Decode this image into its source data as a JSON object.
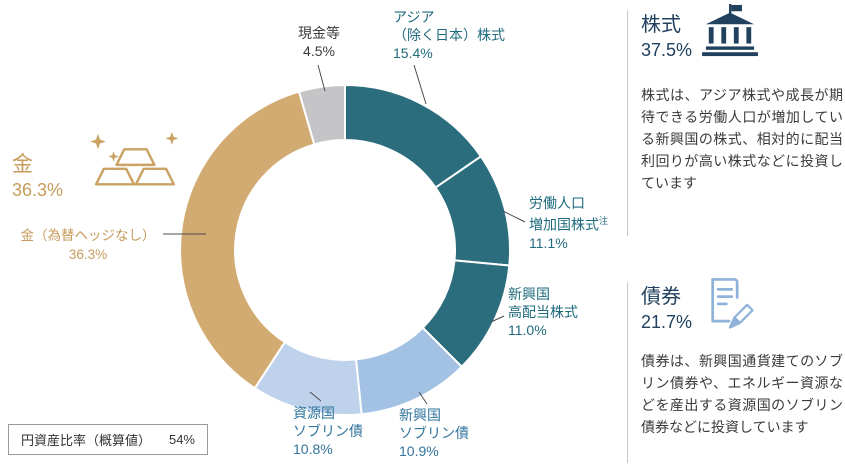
{
  "chart_data": {
    "type": "donut",
    "title": "",
    "unit": "%",
    "direction": "clockwise",
    "start_angle_deg": 0,
    "segments": [
      {
        "id": "asia-ex-japan-equity",
        "label": "アジア（除く日本）株式",
        "value": 15.4,
        "color": "#2b6d7d"
      },
      {
        "id": "labor-population-equity",
        "label": "労働人口増加国株式",
        "value": 11.1,
        "color": "#2b6d7d"
      },
      {
        "id": "em-high-dividend-equity",
        "label": "新興国高配当株式",
        "value": 11.0,
        "color": "#2b6d7d"
      },
      {
        "id": "em-sovereign-bond",
        "label": "新興国ソブリン債",
        "value": 10.9,
        "color": "#a3c2e3"
      },
      {
        "id": "resource-sovereign-bond",
        "label": "資源国ソブリン債",
        "value": 10.8,
        "color": "#bfd2ec"
      },
      {
        "id": "gold-unhedged",
        "label": "金（為替ヘッジなし）",
        "value": 36.3,
        "color": "#d2ab72"
      },
      {
        "id": "cash",
        "label": "現金等",
        "value": 4.5,
        "color": "#c5c5c7"
      }
    ],
    "groups": [
      {
        "label": "株式",
        "value": 37.5
      },
      {
        "label": "債券",
        "value": 21.7
      },
      {
        "label": "金",
        "value": 36.3
      }
    ]
  },
  "labels": {
    "cash": {
      "line1": "現金等",
      "pct": "4.5%"
    },
    "asia": {
      "line1": "アジア",
      "line2": "（除く日本）株式",
      "pct": "15.4%"
    },
    "labor": {
      "line1": "労働人口",
      "line2": "増加国株式",
      "note": "注",
      "pct": "11.1%"
    },
    "em_dividend": {
      "line1": "新興国",
      "line2": "高配当株式",
      "pct": "11.0%"
    },
    "em_sovereign": {
      "line1": "新興国",
      "line2": "ソブリン債",
      "pct": "10.9%"
    },
    "resource_sovereign": {
      "line1": "資源国",
      "line2": "ソブリン債",
      "pct": "10.8%"
    },
    "gold_big": {
      "title": "金",
      "pct": "36.3%"
    },
    "gold_sub": {
      "line1": "金（為替ヘッジなし）",
      "pct": "36.3%"
    }
  },
  "panels": {
    "equity": {
      "title": "株式",
      "pct": "37.5%",
      "description": "株式は、アジア株式や成長が期待できる労働人口が増加している新興国の株式、相対的に配当利回りが高い株式などに投資しています"
    },
    "bond": {
      "title": "債券",
      "pct": "21.7%",
      "description": "債券は、新興国通貨建てのソブリン債券や、エネルギー資源などを産出する資源国のソブリン債券などに投資しています"
    }
  },
  "footer": {
    "yen_ratio_label": "円資産比率（概算値）",
    "yen_ratio_value": "54%"
  },
  "colors": {
    "equity_segment": "#2b6d7d",
    "em_sovereign_segment": "#a3c2e3",
    "resource_sovereign_segment": "#bfd2ec",
    "gold_segment": "#d2ab72",
    "cash_segment": "#c5c5c7",
    "equity_label": "#1f6b7d",
    "bond_label": "#32749c",
    "gold_label": "#c79b5c",
    "heading_navy": "#21415f",
    "icon_blue": "#8fb3d8",
    "leader_line": "#4d4d4d"
  }
}
